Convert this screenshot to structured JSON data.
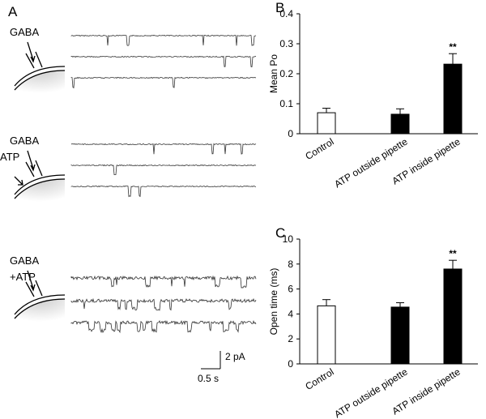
{
  "panel_a": {
    "label": "A",
    "groups": [
      [
        "GABA"
      ],
      [
        "GABA",
        "ATP"
      ],
      [
        "GABA",
        "+ATP"
      ]
    ],
    "scale_y": "2 pA",
    "scale_x": "0.5 s"
  },
  "chart_data": [
    {
      "type": "bar",
      "panel": "B",
      "ylabel": "Mean Po",
      "categories": [
        "Control",
        "ATP outside pipette",
        "ATP inside pipette"
      ],
      "values": [
        0.07,
        0.065,
        0.232
      ],
      "errors": [
        0.015,
        0.018,
        0.035
      ],
      "colors": [
        "#ffffff",
        "#000000",
        "#000000"
      ],
      "ylim": [
        0,
        0.4
      ],
      "yticks": [
        0,
        0.1,
        0.2,
        0.3,
        0.4
      ],
      "annotation": {
        "text": "**",
        "category": "ATP inside pipette"
      }
    },
    {
      "type": "bar",
      "panel": "C",
      "ylabel": "Open time (ms)",
      "categories": [
        "Control",
        "ATP outside pipette",
        "ATP inside pipette"
      ],
      "values": [
        4.65,
        4.55,
        7.6
      ],
      "errors": [
        0.5,
        0.35,
        0.7
      ],
      "colors": [
        "#ffffff",
        "#000000",
        "#000000"
      ],
      "ylim": [
        0,
        10
      ],
      "yticks": [
        0,
        2,
        4,
        6,
        8,
        10
      ],
      "annotation": {
        "text": "**",
        "category": "ATP inside pipette"
      }
    }
  ]
}
